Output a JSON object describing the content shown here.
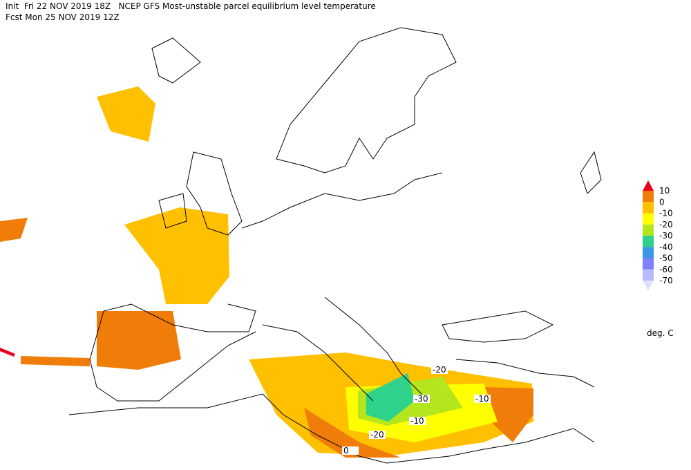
{
  "header": {
    "line1": "Init  Fri 22 NOV 2019 18Z   NCEP GFS Most-unstable parcel equilibrium level temperature",
    "line2": "Fcst Mon 25 NOV 2019 12Z"
  },
  "legend": {
    "levels": [
      10,
      0,
      -10,
      -20,
      -30,
      -40,
      -50,
      -60,
      -70
    ],
    "colors": [
      "#e8001a",
      "#f07d0a",
      "#ffc000",
      "#ffff00",
      "#b4e61e",
      "#2ed28a",
      "#3c96e6",
      "#8080ff",
      "#b8b8ff",
      "#e0e0ff"
    ],
    "unit": "deg. C"
  },
  "contour_labels": [
    -30,
    -20,
    -10,
    -10,
    -20,
    0
  ]
}
